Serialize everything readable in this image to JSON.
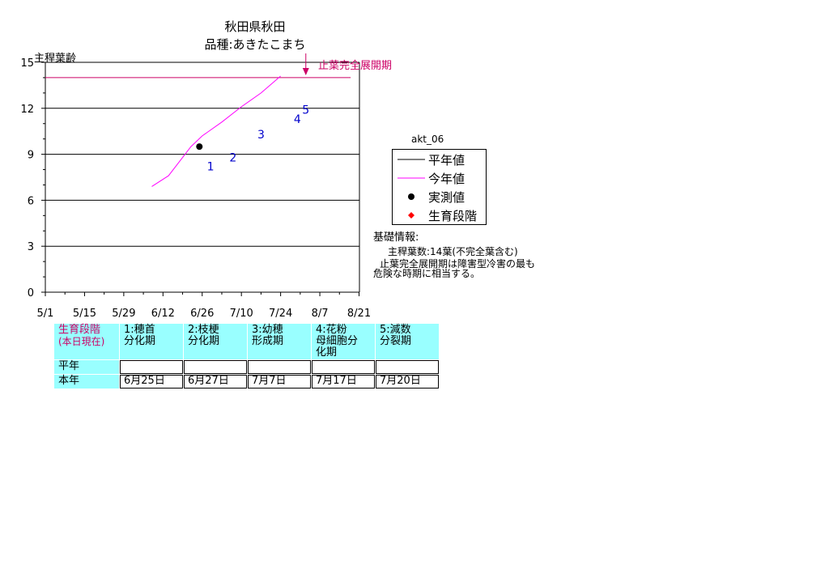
{
  "title": {
    "line1": "秋田県秋田",
    "line2": "品種:あきたこまち"
  },
  "annotation": {
    "label": "止葉完全展開期",
    "color": "#cc0066"
  },
  "chart_data": {
    "type": "line",
    "ylabel": "主稈葉齢",
    "ylim": [
      0,
      15
    ],
    "yticks": [
      "0",
      "3",
      "6",
      "9",
      "12",
      "15"
    ],
    "xticks": [
      "5/1",
      "5/15",
      "5/29",
      "6/12",
      "6/26",
      "7/10",
      "7/24",
      "8/7",
      "8/21"
    ],
    "grid": "horizontal",
    "series": [
      {
        "name": "平年値",
        "kind": "line",
        "color": "#cc0066",
        "x": [
          "5/1",
          "8/18"
        ],
        "y": [
          14,
          14
        ]
      },
      {
        "name": "今年値",
        "kind": "line",
        "color": "#ff00ff",
        "x": [
          "6/8",
          "6/14",
          "6/22",
          "6/26",
          "7/3",
          "7/10",
          "7/17",
          "7/24"
        ],
        "y": [
          6.9,
          7.6,
          9.5,
          10.2,
          11.1,
          12.1,
          13.0,
          14.1
        ]
      },
      {
        "name": "実測値",
        "kind": "point",
        "color": "#000000",
        "x": [
          "6/25"
        ],
        "y": [
          9.5
        ]
      }
    ],
    "stage_markers": [
      {
        "label": "1",
        "x": "6/29",
        "y": 8.2
      },
      {
        "label": "2",
        "x": "7/7",
        "y": 8.8
      },
      {
        "label": "3",
        "x": "7/17",
        "y": 10.3
      },
      {
        "label": "4",
        "x": "7/30",
        "y": 11.3
      },
      {
        "label": "5",
        "x": "8/2",
        "y": 11.9
      }
    ],
    "annotation_arrow_x": "8/2"
  },
  "legend": {
    "header": "akt_06",
    "items": [
      {
        "label": "平年値",
        "symbol": "line",
        "color": "#000000"
      },
      {
        "label": "今年値",
        "symbol": "line",
        "color": "#ff00ff"
      },
      {
        "label": "実測値",
        "symbol": "dot",
        "color": "#000000"
      },
      {
        "label": "生育段階",
        "symbol": "diamond",
        "color": "#ff0000"
      }
    ]
  },
  "info": {
    "heading": "基礎情報:",
    "line1": "主稈葉数:14葉(不完全葉含む)",
    "line2": "止葉完全展開期は障害型冷害の最も",
    "line3": "危険な時期に相当する。"
  },
  "stage_table": {
    "header_line1": "生育段階",
    "header_line2": "(本日現在)",
    "columns": [
      [
        "1:穂首",
        "分化期"
      ],
      [
        "2:枝梗",
        "分化期"
      ],
      [
        "3:幼穂",
        "形成期"
      ],
      [
        "4:花粉",
        "母細胞分",
        "化期"
      ],
      [
        "5:減数",
        "分裂期"
      ]
    ],
    "row_normal_label": "平年",
    "row_this_year_label": "本年",
    "this_year_values": [
      "6月25日",
      "6月27日",
      "7月7日",
      "7月17日",
      "7月20日"
    ]
  }
}
